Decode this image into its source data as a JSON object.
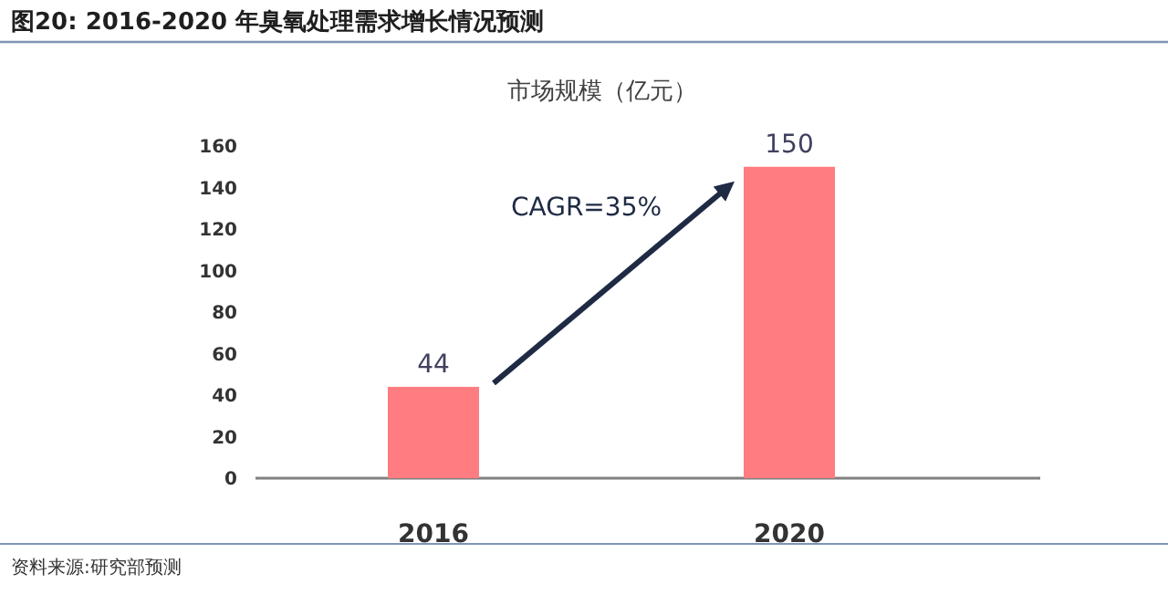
{
  "chart_data": {
    "type": "bar",
    "title": "图20: 2016-2020 年臭氧处理需求增长情况预测",
    "ylabel": "市场规模（亿元）",
    "categories": [
      "2016",
      "2020"
    ],
    "values": [
      44,
      150
    ],
    "color": "#ff7c80",
    "data_labels": true,
    "ylim": [
      0,
      160
    ],
    "yticks": [
      0,
      20,
      40,
      60,
      80,
      100,
      120,
      140,
      160
    ],
    "annotations": [
      "CAGR=35%",
      "资料来源:研究部预测"
    ]
  }
}
